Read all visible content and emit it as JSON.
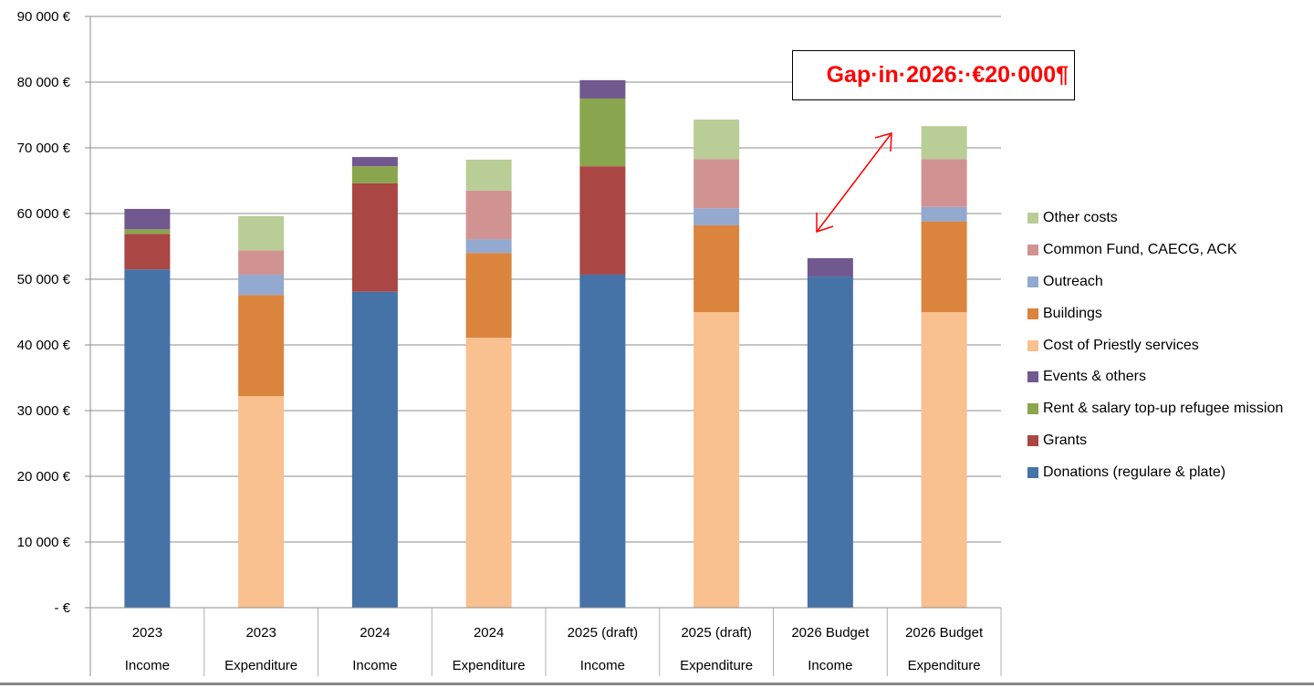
{
  "chart_data": {
    "type": "bar",
    "stacked": true,
    "title": "",
    "xlabel": "",
    "ylabel": "",
    "ylim": [
      0,
      90000
    ],
    "yticks": [
      0,
      10000,
      20000,
      30000,
      40000,
      50000,
      60000,
      70000,
      80000,
      90000
    ],
    "ytick_labels": [
      "- €",
      "10 000 €",
      "20 000 €",
      "30 000 €",
      "40 000 €",
      "50 000 €",
      "60 000 €",
      "70 000 €",
      "80 000 €",
      "90 000 €"
    ],
    "grid": true,
    "legend_position": "right",
    "categories": [
      {
        "year": "2023",
        "kind": "Income"
      },
      {
        "year": "2023",
        "kind": "Expenditure"
      },
      {
        "year": "2024",
        "kind": "Income"
      },
      {
        "year": "2024",
        "kind": "Expenditure"
      },
      {
        "year": "2025 (draft)",
        "kind": "Income"
      },
      {
        "year": "2025 (draft)",
        "kind": "Expenditure"
      },
      {
        "year": "2026 Budget",
        "kind": "Income"
      },
      {
        "year": "2026 Budget",
        "kind": "Expenditure"
      }
    ],
    "series": [
      {
        "name": "Donations (regulare & plate)",
        "color": "#4572a7",
        "values": [
          51500,
          0,
          48100,
          0,
          50700,
          0,
          50400,
          0
        ]
      },
      {
        "name": "Grants",
        "color": "#aa4643",
        "values": [
          5400,
          0,
          16500,
          0,
          16500,
          0,
          0,
          0
        ]
      },
      {
        "name": "Rent & salary top-up refugee mission",
        "color": "#89a54e",
        "values": [
          700,
          0,
          2600,
          0,
          10300,
          0,
          0,
          0
        ]
      },
      {
        "name": "Events & others",
        "color": "#71588f",
        "values": [
          3100,
          0,
          1400,
          0,
          2800,
          0,
          2800,
          0
        ]
      },
      {
        "name": "Cost of Priestly services",
        "color": "#f9c090",
        "values": [
          0,
          32200,
          0,
          41100,
          0,
          45000,
          0,
          45000
        ]
      },
      {
        "name": "Buildings",
        "color": "#db843d",
        "values": [
          0,
          15400,
          0,
          12900,
          0,
          13200,
          0,
          13800
        ]
      },
      {
        "name": "Outreach",
        "color": "#93a9cf",
        "values": [
          0,
          3100,
          0,
          2100,
          0,
          2600,
          0,
          2200
        ]
      },
      {
        "name": "Common Fund, CAECG, ACK",
        "color": "#d19392",
        "values": [
          0,
          3700,
          0,
          7400,
          0,
          7500,
          0,
          7300
        ]
      },
      {
        "name": "Other costs",
        "color": "#b9cd96",
        "values": [
          0,
          5200,
          0,
          4700,
          0,
          6000,
          0,
          5000
        ]
      }
    ],
    "legend_order": [
      "Other costs",
      "Common Fund, CAECG, ACK",
      "Outreach",
      "Buildings",
      "Cost of Priestly services",
      "Events & others",
      "Rent & salary top-up refugee mission",
      "Grants",
      "Donations (regulare & plate)"
    ],
    "annotations": [
      {
        "text": "Gap·in·2026:·€20·000¶",
        "color": "#ff0000",
        "type": "textbox"
      },
      {
        "type": "double-arrow",
        "color": "#ff0000",
        "from_category": "2026 Budget Income",
        "to_category": "2026 Budget Expenditure"
      }
    ]
  },
  "legend": [
    {
      "label": "Other costs",
      "color": "#b9cd96"
    },
    {
      "label": "Common Fund, CAECG, ACK",
      "color": "#d19392"
    },
    {
      "label": "Outreach",
      "color": "#93a9cf"
    },
    {
      "label": "Buildings",
      "color": "#db843d"
    },
    {
      "label": "Cost of Priestly services",
      "color": "#f9c090"
    },
    {
      "label": "Events & others",
      "color": "#71588f"
    },
    {
      "label": "Rent & salary top-up refugee mission",
      "color": "#89a54e"
    },
    {
      "label": "Grants",
      "color": "#aa4643"
    },
    {
      "label": "Donations (regulare & plate)",
      "color": "#4572a7"
    }
  ],
  "annotation": {
    "gap_text": "Gap·in·2026:·€20·000¶"
  }
}
